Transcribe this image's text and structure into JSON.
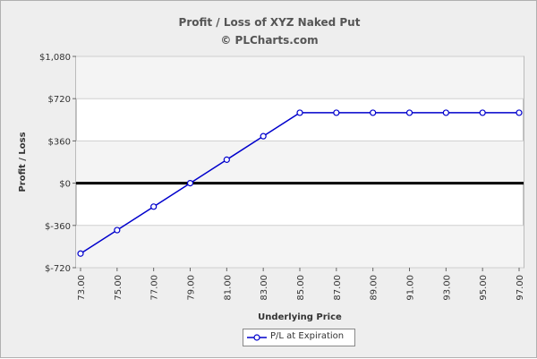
{
  "chart_data": {
    "type": "line",
    "title": "Profit / Loss of XYZ Naked Put",
    "subtitle": "© PLCharts.com",
    "xlabel": "Underlying Price",
    "ylabel": "Profit / Loss",
    "x": [
      73,
      75,
      77,
      79,
      81,
      83,
      85,
      87,
      89,
      91,
      93,
      95,
      97
    ],
    "x_tick_labels": [
      "73.00",
      "75.00",
      "77.00",
      "79.00",
      "81.00",
      "83.00",
      "85.00",
      "87.00",
      "89.00",
      "91.00",
      "93.00",
      "95.00",
      "97.00"
    ],
    "y_tick_values": [
      -720,
      -360,
      0,
      360,
      720,
      1080
    ],
    "y_tick_labels": [
      "$-720",
      "$-360",
      "$0",
      "$360",
      "$720",
      "$1,080"
    ],
    "ylim": [
      -720,
      1080
    ],
    "xlim": [
      73,
      97
    ],
    "grid": true,
    "legend_position": "bottom-center",
    "series": [
      {
        "name": "P/L at Expiration",
        "color": "#0000cc",
        "values": [
          -600,
          -400,
          -200,
          0,
          200,
          400,
          600,
          600,
          600,
          600,
          600,
          600,
          600
        ]
      }
    ]
  }
}
